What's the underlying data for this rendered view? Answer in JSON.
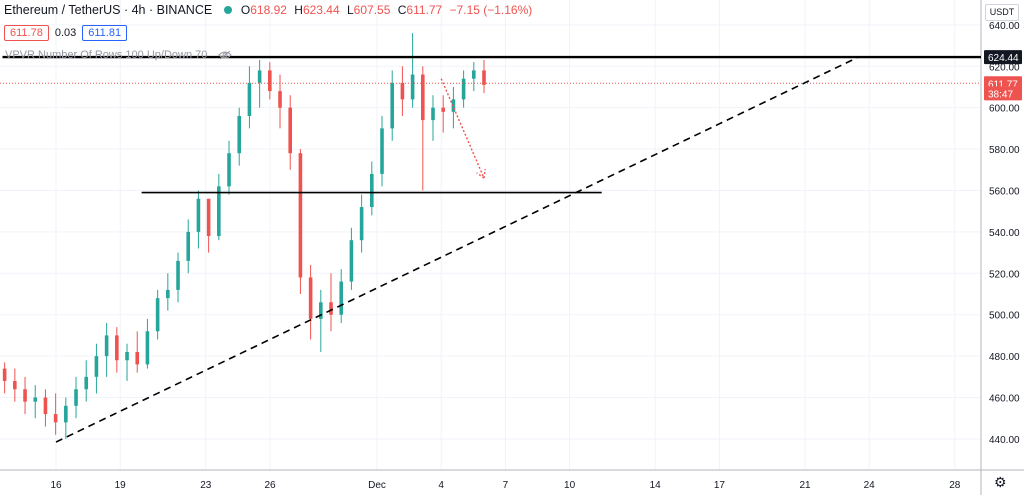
{
  "header": {
    "symbol": "Ethereum / TetherUS · 4h · BINANCE",
    "open_label": "O",
    "open": "618.92",
    "high_label": "H",
    "high": "623.44",
    "low_label": "L",
    "low": "607.55",
    "close_label": "C",
    "close": "611.77",
    "change": "−7.15 (−1.16%)"
  },
  "prices": {
    "bid": "611.78",
    "spread": "0.03",
    "ask": "611.81"
  },
  "indicator": {
    "label": "VPVR Number Of Rows 100 Up/Down 70"
  },
  "currency_button": "USDT",
  "colors": {
    "up": "#26a69a",
    "down": "#ef5350",
    "line": "#000000",
    "grid": "#f0f3fa"
  },
  "chart_data": {
    "type": "candlestick",
    "ylim": [
      425,
      652
    ],
    "yticks": [
      "640.00",
      "620.00",
      "600.00",
      "580.00",
      "560.00",
      "540.00",
      "520.00",
      "500.00",
      "480.00",
      "460.00",
      "440.00"
    ],
    "ytick_values": [
      640,
      620,
      600,
      580,
      560,
      540,
      520,
      500,
      480,
      460,
      440
    ],
    "xticks": [
      "16",
      "19",
      "23",
      "26",
      "Dec",
      "4",
      "7",
      "10",
      "14",
      "17",
      "21",
      "24",
      "28"
    ],
    "xtick_positions": [
      0,
      3,
      7,
      10,
      15,
      18,
      21,
      24,
      28,
      31,
      35,
      38,
      42
    ],
    "price_labels": [
      {
        "text": "624.44",
        "value": 624.44,
        "style": "dark"
      },
      {
        "text": "611.77",
        "value": 611.77,
        "style": "red"
      },
      {
        "text": "38:47",
        "value": 606.9,
        "style": "red"
      }
    ],
    "horizontal_lines": [
      {
        "value": 624.44,
        "from_day": -2.5,
        "to_day": 44.0,
        "weight": 2.4
      },
      {
        "value": 559.0,
        "from_day": 4.0,
        "to_day": 25.5,
        "weight": 1.6
      }
    ],
    "trend_line": {
      "from": [
        0.0,
        438.5
      ],
      "to": [
        37.5,
        624.44
      ]
    },
    "dotted_price_line": {
      "value": 611.77
    },
    "arrow": {
      "from": [
        18.0,
        614.0
      ],
      "to": [
        20.0,
        566.0
      ]
    },
    "candles": [
      {
        "o": 474,
        "h": 477,
        "l": 462,
        "c": 468
      },
      {
        "o": 468,
        "h": 474,
        "l": 458,
        "c": 464
      },
      {
        "o": 464,
        "h": 470,
        "l": 452,
        "c": 458
      },
      {
        "o": 458,
        "h": 466,
        "l": 450,
        "c": 460
      },
      {
        "o": 460,
        "h": 464,
        "l": 446,
        "c": 452
      },
      {
        "o": 452,
        "h": 462,
        "l": 442,
        "c": 448
      },
      {
        "o": 448,
        "h": 460,
        "l": 440,
        "c": 456
      },
      {
        "o": 456,
        "h": 470,
        "l": 450,
        "c": 464
      },
      {
        "o": 464,
        "h": 478,
        "l": 458,
        "c": 470
      },
      {
        "o": 470,
        "h": 486,
        "l": 462,
        "c": 480
      },
      {
        "o": 480,
        "h": 496,
        "l": 470,
        "c": 490
      },
      {
        "o": 490,
        "h": 494,
        "l": 472,
        "c": 478
      },
      {
        "o": 478,
        "h": 486,
        "l": 468,
        "c": 482
      },
      {
        "o": 482,
        "h": 492,
        "l": 472,
        "c": 476
      },
      {
        "o": 476,
        "h": 498,
        "l": 474,
        "c": 492
      },
      {
        "o": 492,
        "h": 512,
        "l": 488,
        "c": 508
      },
      {
        "o": 508,
        "h": 520,
        "l": 502,
        "c": 512
      },
      {
        "o": 512,
        "h": 530,
        "l": 506,
        "c": 526
      },
      {
        "o": 526,
        "h": 546,
        "l": 520,
        "c": 540
      },
      {
        "o": 540,
        "h": 560,
        "l": 532,
        "c": 556
      },
      {
        "o": 556,
        "h": 554,
        "l": 530,
        "c": 538
      },
      {
        "o": 538,
        "h": 568,
        "l": 536,
        "c": 562
      },
      {
        "o": 562,
        "h": 584,
        "l": 558,
        "c": 578
      },
      {
        "o": 578,
        "h": 600,
        "l": 572,
        "c": 596
      },
      {
        "o": 596,
        "h": 620,
        "l": 590,
        "c": 612
      },
      {
        "o": 612,
        "h": 623,
        "l": 600,
        "c": 618
      },
      {
        "o": 618,
        "h": 622,
        "l": 604,
        "c": 608
      },
      {
        "o": 608,
        "h": 616,
        "l": 590,
        "c": 600
      },
      {
        "o": 600,
        "h": 606,
        "l": 570,
        "c": 578
      },
      {
        "o": 578,
        "h": 580,
        "l": 510,
        "c": 518
      },
      {
        "o": 518,
        "h": 524,
        "l": 488,
        "c": 498
      },
      {
        "o": 498,
        "h": 512,
        "l": 482,
        "c": 506
      },
      {
        "o": 506,
        "h": 520,
        "l": 492,
        "c": 500
      },
      {
        "o": 500,
        "h": 522,
        "l": 496,
        "c": 516
      },
      {
        "o": 516,
        "h": 542,
        "l": 512,
        "c": 536
      },
      {
        "o": 536,
        "h": 558,
        "l": 530,
        "c": 552
      },
      {
        "o": 552,
        "h": 574,
        "l": 548,
        "c": 568
      },
      {
        "o": 568,
        "h": 596,
        "l": 562,
        "c": 590
      },
      {
        "o": 590,
        "h": 618,
        "l": 584,
        "c": 612
      },
      {
        "o": 612,
        "h": 620,
        "l": 596,
        "c": 604
      },
      {
        "o": 604,
        "h": 636,
        "l": 600,
        "c": 616
      },
      {
        "o": 616,
        "h": 620,
        "l": 560,
        "c": 594
      },
      {
        "o": 594,
        "h": 606,
        "l": 584,
        "c": 600
      },
      {
        "o": 600,
        "h": 606,
        "l": 588,
        "c": 598
      },
      {
        "o": 598,
        "h": 610,
        "l": 590,
        "c": 604
      },
      {
        "o": 604,
        "h": 618,
        "l": 600,
        "c": 614
      },
      {
        "o": 614,
        "h": 622,
        "l": 608,
        "c": 618
      },
      {
        "o": 618,
        "h": 623,
        "l": 607,
        "c": 611
      }
    ]
  }
}
